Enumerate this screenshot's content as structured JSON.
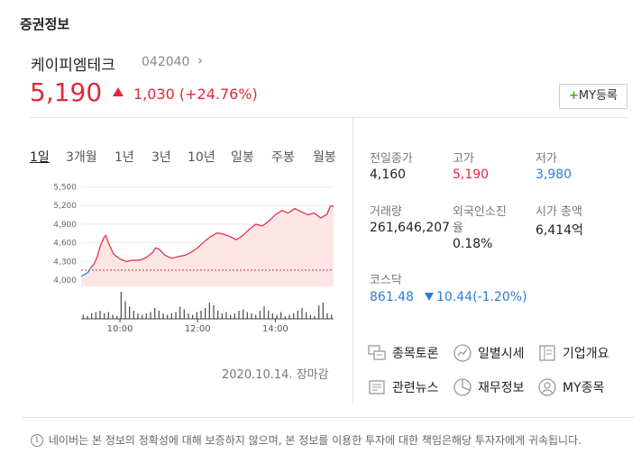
{
  "section_title": "증권정보",
  "stock": {
    "name": "케이피엠테크",
    "code": "042040",
    "price": "5,190",
    "change": "1,030 (+24.76%)",
    "direction": "up"
  },
  "my_button": {
    "plus": "+",
    "label": "MY등록"
  },
  "tabs": [
    "1일",
    "3개월",
    "1년",
    "3년",
    "10년",
    "일봉",
    "주봉",
    "월봉"
  ],
  "active_tab": "1일",
  "chart_data": {
    "type": "line",
    "title": "",
    "y_ticks": [
      "5,500",
      "5,200",
      "4,900",
      "4,600",
      "4,300",
      "4,000"
    ],
    "x_ticks": [
      "10:00",
      "12:00",
      "14:00"
    ],
    "ylim": [
      3900,
      5550
    ],
    "reference_price": 4160,
    "x_range": [
      "09:00",
      "15:30"
    ],
    "price_points": [
      [
        "09:00",
        4060
      ],
      [
        "09:05",
        4090
      ],
      [
        "09:10",
        4120
      ],
      [
        "09:15",
        4200
      ],
      [
        "09:20",
        4260
      ],
      [
        "09:25",
        4380
      ],
      [
        "09:30",
        4560
      ],
      [
        "09:35",
        4680
      ],
      [
        "09:38",
        4720
      ],
      [
        "09:42",
        4600
      ],
      [
        "09:50",
        4420
      ],
      [
        "10:00",
        4340
      ],
      [
        "10:10",
        4300
      ],
      [
        "10:20",
        4320
      ],
      [
        "10:30",
        4320
      ],
      [
        "10:40",
        4360
      ],
      [
        "10:50",
        4440
      ],
      [
        "10:55",
        4520
      ],
      [
        "11:00",
        4500
      ],
      [
        "11:10",
        4400
      ],
      [
        "11:20",
        4350
      ],
      [
        "11:30",
        4380
      ],
      [
        "11:40",
        4400
      ],
      [
        "11:50",
        4450
      ],
      [
        "12:00",
        4520
      ],
      [
        "12:10",
        4620
      ],
      [
        "12:20",
        4700
      ],
      [
        "12:30",
        4760
      ],
      [
        "12:40",
        4740
      ],
      [
        "12:50",
        4700
      ],
      [
        "13:00",
        4650
      ],
      [
        "13:10",
        4720
      ],
      [
        "13:20",
        4820
      ],
      [
        "13:30",
        4900
      ],
      [
        "13:40",
        4870
      ],
      [
        "13:50",
        4950
      ],
      [
        "14:00",
        5050
      ],
      [
        "14:10",
        5120
      ],
      [
        "14:20",
        5080
      ],
      [
        "14:30",
        5150
      ],
      [
        "14:40",
        5100
      ],
      [
        "14:50",
        5050
      ],
      [
        "15:00",
        5080
      ],
      [
        "15:10",
        5000
      ],
      [
        "15:20",
        5060
      ],
      [
        "15:25",
        5190
      ],
      [
        "15:30",
        5190
      ]
    ],
    "volume": [
      3,
      2,
      4,
      5,
      6,
      4,
      5,
      3,
      2,
      20,
      13,
      9,
      6,
      4,
      3,
      4,
      5,
      8,
      6,
      4,
      3,
      4,
      5,
      9,
      7,
      4,
      3,
      5,
      6,
      8,
      12,
      10,
      6,
      4,
      5,
      3,
      4,
      6,
      7,
      5,
      4,
      3,
      6,
      9,
      6,
      4,
      3,
      5,
      2,
      3,
      4,
      6,
      8,
      5,
      3,
      2,
      10,
      12,
      4,
      3
    ]
  },
  "date_status": "2020.10.14. 장마감",
  "info": {
    "prev_close": {
      "label": "전일종가",
      "value": "4,160"
    },
    "high": {
      "label": "고가",
      "value": "5,190"
    },
    "low": {
      "label": "저가",
      "value": "3,980"
    },
    "volume": {
      "label": "거래량",
      "value": "261,646,207"
    },
    "foreign_ratio": {
      "label": "외국인소진율",
      "label_line1": "외국인소진",
      "label_line2": "율",
      "value": "0.18%"
    },
    "market_cap": {
      "label": "시가 총액",
      "value": "6,414억"
    }
  },
  "kosdaq": {
    "label": "코스닥",
    "value": "861.48",
    "change": "10.44(-1.20%)"
  },
  "links": [
    {
      "label": "종목토론",
      "icon": "discussion-icon"
    },
    {
      "label": "일별시세",
      "icon": "trend-icon"
    },
    {
      "label": "기업개요",
      "icon": "overview-icon"
    },
    {
      "label": "관련뉴스",
      "icon": "news-icon"
    },
    {
      "label": "재무정보",
      "icon": "pie-icon"
    },
    {
      "label": "MY종목",
      "icon": "user-icon"
    }
  ],
  "footer": {
    "info_glyph": "i",
    "disclaimer": "네이버는 본 정보의 정확성에 대해 보증하지 않으며, 본 정보를 이용한 투자에 대한 책임은해당 투자자에게 귀속됩니다."
  },
  "colors": {
    "up": "#e0293a",
    "down": "#2a7bd8",
    "area_fill": "#fde5e6",
    "volume": "#555555"
  }
}
